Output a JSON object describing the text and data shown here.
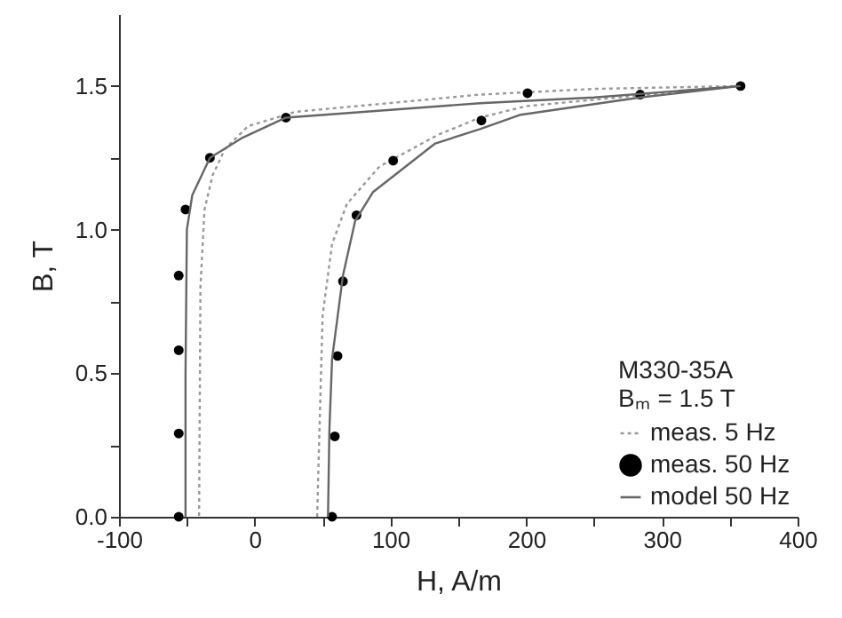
{
  "chart_data": {
    "type": "line",
    "xlabel": "H, A/m",
    "ylabel": "B, T",
    "legend_title": "M330-35A",
    "annotations": [
      "Bₘ = 1.5 T"
    ],
    "legend": "bottom right",
    "grid": false,
    "xlim": [
      -100,
      400
    ],
    "xticks": [
      -100,
      {
        "value": -50,
        "label": null
      },
      0,
      {
        "value": 50,
        "label": null
      },
      100,
      {
        "value": 150,
        "label": null
      },
      200,
      {
        "value": 250,
        "label": null
      },
      300,
      {
        "value": 350,
        "label": null
      },
      400
    ],
    "ylim": [
      0,
      1.75
    ],
    "yticks": [
      {
        "value": 0,
        "label": "0.0"
      },
      {
        "value": 0.25,
        "label": null
      },
      {
        "value": 0.5,
        "label": "0.5"
      },
      {
        "value": 0.75,
        "label": null
      },
      {
        "value": 1,
        "label": "1.0"
      },
      {
        "value": 1.25,
        "label": null
      },
      {
        "value": 1.5,
        "label": "1.5"
      }
    ],
    "series": [
      {
        "name": "meas. 5 Hz",
        "type": "line",
        "line_style": "dotted",
        "marker": "none",
        "color": "#999999",
        "x": [
          358,
          250,
          166,
          30,
          -5,
          -22,
          -31,
          -37,
          -40,
          -41,
          null,
          46,
          47,
          50,
          57,
          68,
          92,
          135,
          166,
          200,
          290,
          358
        ],
        "values": [
          1.5,
          1.49,
          1.47,
          1.41,
          1.36,
          1.28,
          1.19,
          1.07,
          0.8,
          0,
          null,
          0,
          0.18,
          0.7,
          0.95,
          1.09,
          1.22,
          1.33,
          1.39,
          1.43,
          1.47,
          1.5
        ]
      },
      {
        "name": "meas. 50 Hz",
        "type": "scatter",
        "marker": "circle",
        "color": "#000000",
        "x": [
          358,
          284,
          201,
          23,
          -33,
          -51,
          -56,
          -56,
          -56,
          -56,
          57,
          59,
          61,
          65,
          75,
          102,
          167
        ],
        "values": [
          1.5,
          1.47,
          1.475,
          1.39,
          1.25,
          1.07,
          0.84,
          0.58,
          0.29,
          0,
          0,
          0.28,
          0.56,
          0.82,
          1.05,
          1.24,
          1.38
        ]
      },
      {
        "name": "model 50 Hz",
        "type": "line",
        "line_style": "solid",
        "marker": "none",
        "color": "#666666",
        "x": [
          358,
          250,
          166,
          23,
          -9,
          -33,
          -46,
          -50,
          -51,
          -51,
          null,
          54,
          55,
          57,
          65,
          74,
          87,
          133,
          166,
          196,
          284,
          358
        ],
        "values": [
          1.5,
          1.46,
          1.44,
          1.39,
          1.32,
          1.25,
          1.12,
          1.0,
          0.5,
          0,
          null,
          0,
          0.3,
          0.55,
          0.84,
          1.03,
          1.13,
          1.3,
          1.35,
          1.4,
          1.46,
          1.5
        ]
      }
    ]
  }
}
